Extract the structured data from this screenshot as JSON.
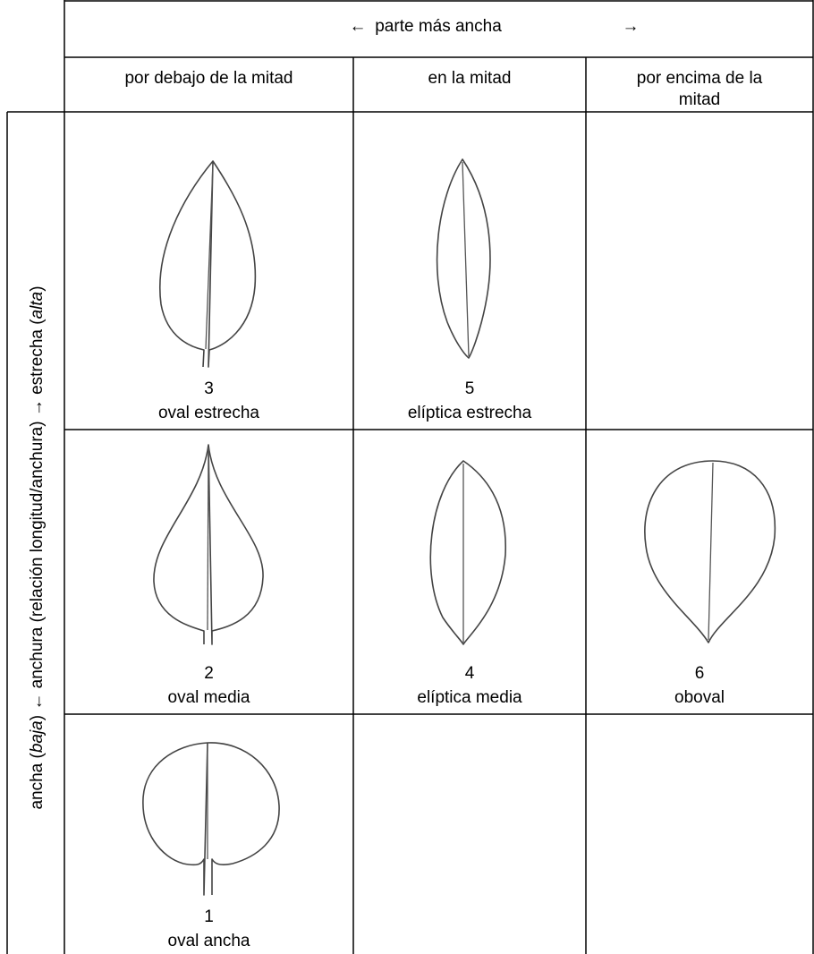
{
  "header": {
    "arrow_left": "←",
    "title": "parte más ancha",
    "arrow_right": "→"
  },
  "columns": [
    "por debajo de la mitad",
    "en la mitad",
    "por encima de la mitad"
  ],
  "side_label": [
    "ancha (",
    "baja",
    ") ← anchura (relación longitud/anchura) → estrecha (",
    "alta",
    ")"
  ],
  "rows": [
    [
      {
        "number": "3",
        "name": "oval estrecha"
      },
      {
        "number": "5",
        "name": "elíptica estrecha"
      },
      null
    ],
    [
      {
        "number": "2",
        "name": "oval media"
      },
      {
        "number": "4",
        "name": "elíptica media"
      },
      {
        "number": "6",
        "name": "oboval"
      }
    ],
    [
      {
        "number": "1",
        "name": "oval ancha"
      },
      null,
      null
    ]
  ]
}
